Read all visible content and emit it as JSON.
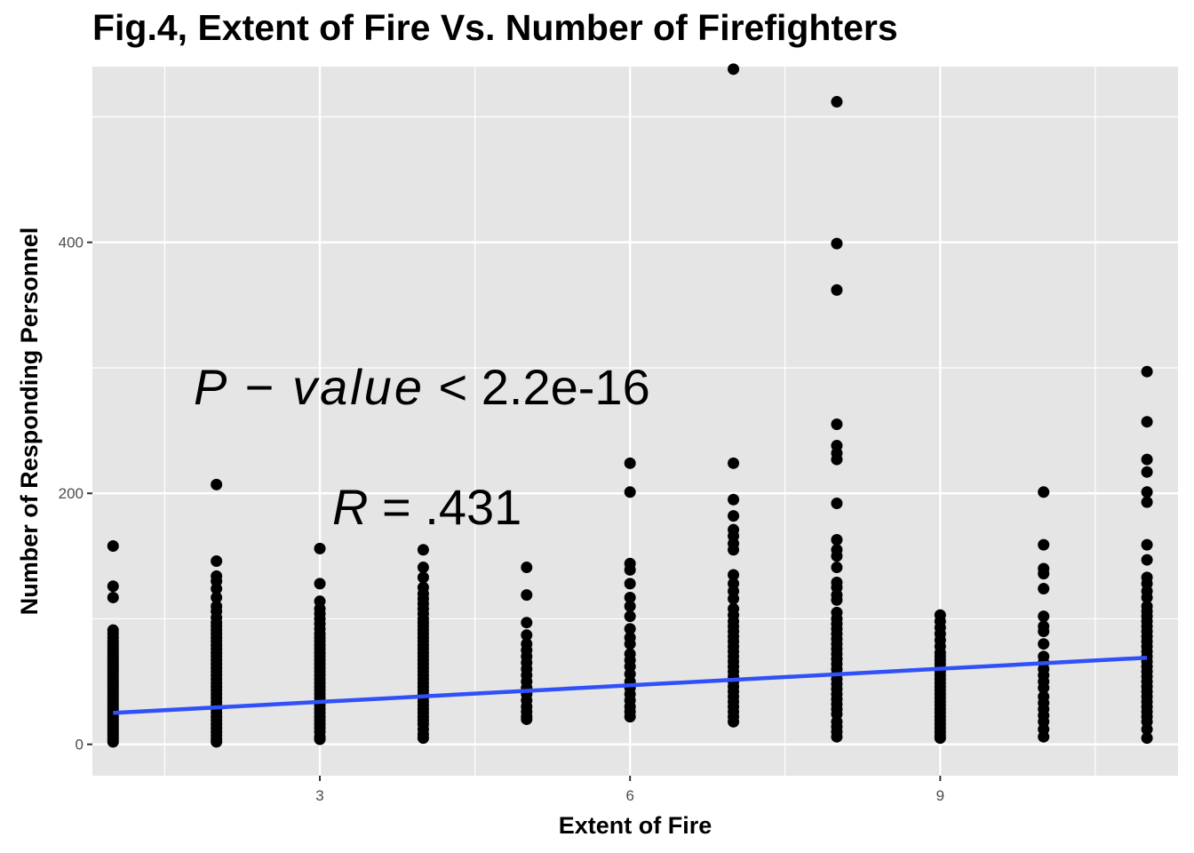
{
  "chart_data": {
    "type": "scatter",
    "title": "Fig.4, Extent of Fire Vs. Number of Firefighters",
    "xlabel": "Extent of Fire",
    "ylabel": "Number of Responding Personnel",
    "xlim": [
      0.8,
      11.3
    ],
    "ylim": [
      -25,
      540
    ],
    "x_ticks": [
      3,
      6,
      9
    ],
    "y_ticks": [
      0,
      200,
      400
    ],
    "grid": true,
    "background": "#e5e5e5",
    "point_color": "#000000",
    "line_color": "#3050f8",
    "annotations": [
      {
        "id": "pvalue",
        "italic_part": "P − value",
        "rest": " < 2.2e-16"
      },
      {
        "id": "r",
        "italic_part": "R",
        "rest": " = .431"
      }
    ],
    "points": {
      "1": [
        158,
        126,
        117,
        91,
        88,
        85,
        82,
        80,
        78,
        76,
        74,
        72,
        70,
        68,
        66,
        64,
        62,
        60,
        58,
        56,
        54,
        52,
        50,
        48,
        46,
        44,
        42,
        40,
        38,
        36,
        34,
        32,
        30,
        28,
        26,
        24,
        22,
        20,
        18,
        16,
        14,
        12,
        10,
        8,
        6,
        4,
        2
      ],
      "2": [
        207,
        146,
        134,
        130,
        124,
        117,
        110,
        106,
        101,
        97,
        94,
        91,
        88,
        85,
        82,
        79,
        76,
        73,
        70,
        67,
        64,
        61,
        58,
        55,
        52,
        49,
        46,
        43,
        40,
        37,
        34,
        31,
        28,
        25,
        22,
        19,
        16,
        13,
        10,
        7,
        4,
        2
      ],
      "3": [
        156,
        128,
        114,
        108,
        104,
        100,
        96,
        92,
        88,
        85,
        82,
        79,
        76,
        73,
        70,
        67,
        64,
        61,
        58,
        55,
        52,
        49,
        46,
        43,
        40,
        37,
        34,
        31,
        28,
        25,
        22,
        19,
        16,
        13,
        10,
        6,
        4
      ],
      "4": [
        155,
        141,
        133,
        125,
        120,
        116,
        112,
        108,
        104,
        100,
        97,
        94,
        91,
        88,
        85,
        82,
        79,
        76,
        73,
        70,
        67,
        64,
        61,
        58,
        55,
        52,
        49,
        46,
        43,
        40,
        37,
        34,
        31,
        28,
        25,
        22,
        19,
        16,
        12,
        8,
        5
      ],
      "5": [
        141,
        119,
        97,
        87,
        80,
        75,
        70,
        65,
        60,
        55,
        50,
        45,
        40,
        35,
        30,
        26,
        22,
        20
      ],
      "6": [
        224,
        201,
        144,
        139,
        128,
        117,
        110,
        102,
        92,
        85,
        80,
        72,
        67,
        62,
        56,
        50,
        45,
        40,
        35,
        30,
        26,
        22
      ],
      "7": [
        538,
        224,
        195,
        182,
        171,
        166,
        160,
        155,
        135,
        128,
        122,
        116,
        108,
        103,
        98,
        94,
        90,
        86,
        82,
        78,
        74,
        70,
        66,
        62,
        58,
        54,
        50,
        46,
        42,
        38,
        34,
        30,
        26,
        22,
        18
      ],
      "8": [
        512,
        399,
        362,
        255,
        238,
        232,
        227,
        192,
        163,
        155,
        150,
        141,
        129,
        125,
        119,
        115,
        105,
        100,
        96,
        92,
        88,
        84,
        80,
        76,
        72,
        68,
        64,
        60,
        56,
        52,
        48,
        44,
        40,
        36,
        32,
        28,
        24,
        18,
        14,
        10,
        6
      ],
      "9": [
        103,
        98,
        93,
        88,
        83,
        78,
        73,
        70,
        67,
        64,
        61,
        58,
        55,
        52,
        49,
        46,
        43,
        40,
        37,
        34,
        31,
        28,
        25,
        22,
        19,
        16,
        13,
        10,
        7,
        5
      ],
      "10": [
        201,
        159,
        140,
        136,
        124,
        102,
        94,
        90,
        80,
        70,
        65,
        60,
        55,
        50,
        45,
        38,
        33,
        28,
        23,
        18,
        12,
        6
      ],
      "11": [
        297,
        257,
        227,
        217,
        201,
        193,
        159,
        147,
        133,
        128,
        122,
        117,
        110,
        106,
        102,
        98,
        94,
        90,
        86,
        82,
        78,
        74,
        70,
        66,
        62,
        58,
        54,
        50,
        46,
        42,
        38,
        34,
        30,
        26,
        22,
        18,
        12,
        5
      ]
    },
    "regression": {
      "x": [
        1,
        11
      ],
      "y": [
        25,
        69
      ]
    }
  }
}
